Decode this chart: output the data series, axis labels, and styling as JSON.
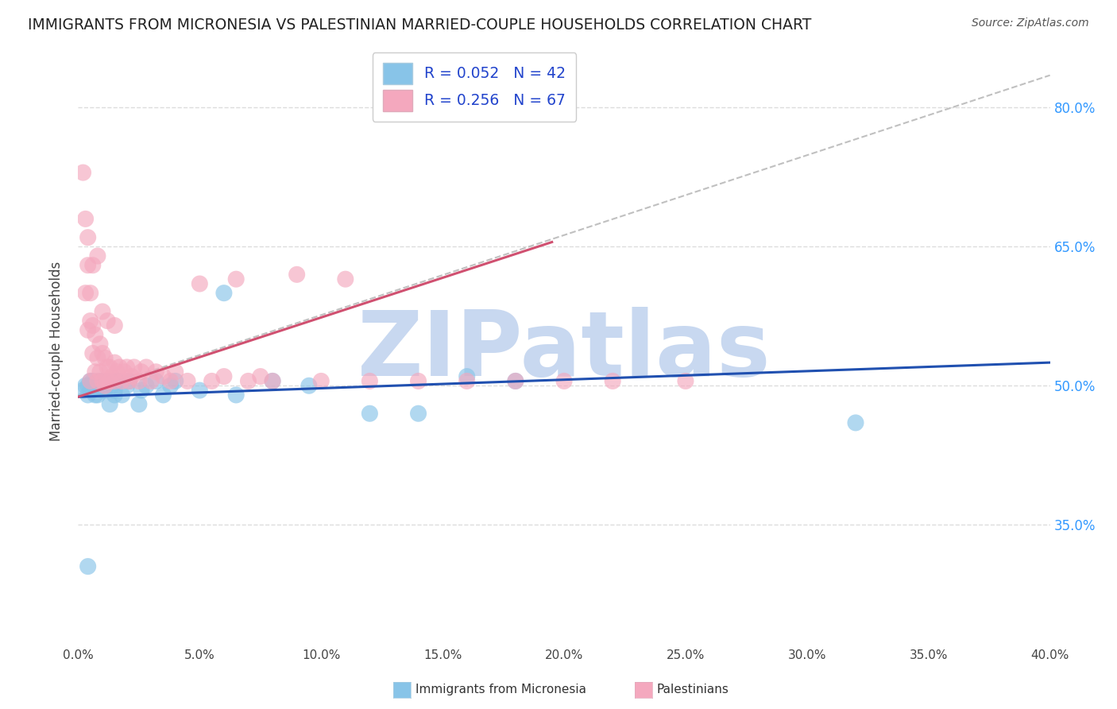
{
  "title": "IMMIGRANTS FROM MICRONESIA VS PALESTINIAN MARRIED-COUPLE HOUSEHOLDS CORRELATION CHART",
  "source": "Source: ZipAtlas.com",
  "ylabel": "Married-couple Households",
  "legend_label_blue": "Immigrants from Micronesia",
  "legend_label_pink": "Palestinians",
  "R_blue": 0.052,
  "N_blue": 42,
  "R_pink": 0.256,
  "N_pink": 67,
  "xlim": [
    0.0,
    0.4
  ],
  "ylim": [
    0.22,
    0.855
  ],
  "xticks": [
    0.0,
    0.05,
    0.1,
    0.15,
    0.2,
    0.25,
    0.3,
    0.35,
    0.4
  ],
  "yticks_right": [
    0.35,
    0.5,
    0.65,
    0.8
  ],
  "ytick_labels_right": [
    "35.0%",
    "50.0%",
    "65.0%",
    "80.0%"
  ],
  "xtick_labels": [
    "0.0%",
    "5.0%",
    "10.0%",
    "15.0%",
    "20.0%",
    "25.0%",
    "30.0%",
    "35.0%",
    "40.0%"
  ],
  "color_blue": "#88C4E8",
  "color_pink": "#F4A8BE",
  "trend_color_blue": "#2050B0",
  "trend_color_pink": "#D05070",
  "trend_color_dashed": "#C0C0C0",
  "watermark": "ZIPatlas",
  "watermark_color": "#C8D8F0",
  "blue_trend_x": [
    0.0,
    0.4
  ],
  "blue_trend_y": [
    0.488,
    0.525
  ],
  "pink_trend_x": [
    0.0,
    0.195
  ],
  "pink_trend_y": [
    0.488,
    0.655
  ],
  "dash_trend_x": [
    0.0,
    0.4
  ],
  "dash_trend_y": [
    0.49,
    0.835
  ],
  "blue_x": [
    0.002,
    0.003,
    0.004,
    0.004,
    0.005,
    0.005,
    0.006,
    0.006,
    0.007,
    0.008,
    0.008,
    0.009,
    0.01,
    0.01,
    0.011,
    0.012,
    0.013,
    0.014,
    0.015,
    0.015,
    0.016,
    0.018,
    0.02,
    0.021,
    0.025,
    0.026,
    0.028,
    0.032,
    0.035,
    0.038,
    0.04,
    0.05,
    0.06,
    0.065,
    0.08,
    0.095,
    0.12,
    0.14,
    0.16,
    0.18,
    0.32,
    0.004
  ],
  "blue_y": [
    0.495,
    0.5,
    0.5,
    0.49,
    0.495,
    0.505,
    0.495,
    0.505,
    0.49,
    0.5,
    0.49,
    0.505,
    0.495,
    0.5,
    0.495,
    0.505,
    0.48,
    0.5,
    0.495,
    0.49,
    0.505,
    0.49,
    0.5,
    0.505,
    0.48,
    0.495,
    0.5,
    0.505,
    0.49,
    0.5,
    0.505,
    0.495,
    0.6,
    0.49,
    0.505,
    0.5,
    0.47,
    0.47,
    0.51,
    0.505,
    0.46,
    0.305
  ],
  "pink_x": [
    0.002,
    0.003,
    0.004,
    0.004,
    0.005,
    0.005,
    0.005,
    0.006,
    0.006,
    0.007,
    0.007,
    0.008,
    0.008,
    0.009,
    0.009,
    0.01,
    0.01,
    0.011,
    0.011,
    0.012,
    0.012,
    0.013,
    0.013,
    0.014,
    0.015,
    0.015,
    0.016,
    0.017,
    0.018,
    0.019,
    0.02,
    0.021,
    0.022,
    0.023,
    0.025,
    0.026,
    0.028,
    0.03,
    0.032,
    0.035,
    0.038,
    0.04,
    0.045,
    0.05,
    0.055,
    0.06,
    0.065,
    0.07,
    0.075,
    0.08,
    0.09,
    0.1,
    0.11,
    0.12,
    0.14,
    0.16,
    0.18,
    0.2,
    0.22,
    0.25,
    0.003,
    0.004,
    0.006,
    0.008,
    0.01,
    0.012,
    0.015
  ],
  "pink_y": [
    0.73,
    0.6,
    0.56,
    0.66,
    0.57,
    0.6,
    0.505,
    0.565,
    0.535,
    0.555,
    0.515,
    0.53,
    0.505,
    0.545,
    0.515,
    0.535,
    0.505,
    0.53,
    0.5,
    0.52,
    0.505,
    0.52,
    0.505,
    0.51,
    0.525,
    0.505,
    0.515,
    0.52,
    0.505,
    0.515,
    0.52,
    0.505,
    0.51,
    0.52,
    0.505,
    0.515,
    0.52,
    0.505,
    0.515,
    0.51,
    0.505,
    0.515,
    0.505,
    0.61,
    0.505,
    0.51,
    0.615,
    0.505,
    0.51,
    0.505,
    0.62,
    0.505,
    0.615,
    0.505,
    0.505,
    0.505,
    0.505,
    0.505,
    0.505,
    0.505,
    0.68,
    0.63,
    0.63,
    0.64,
    0.58,
    0.57,
    0.565
  ]
}
